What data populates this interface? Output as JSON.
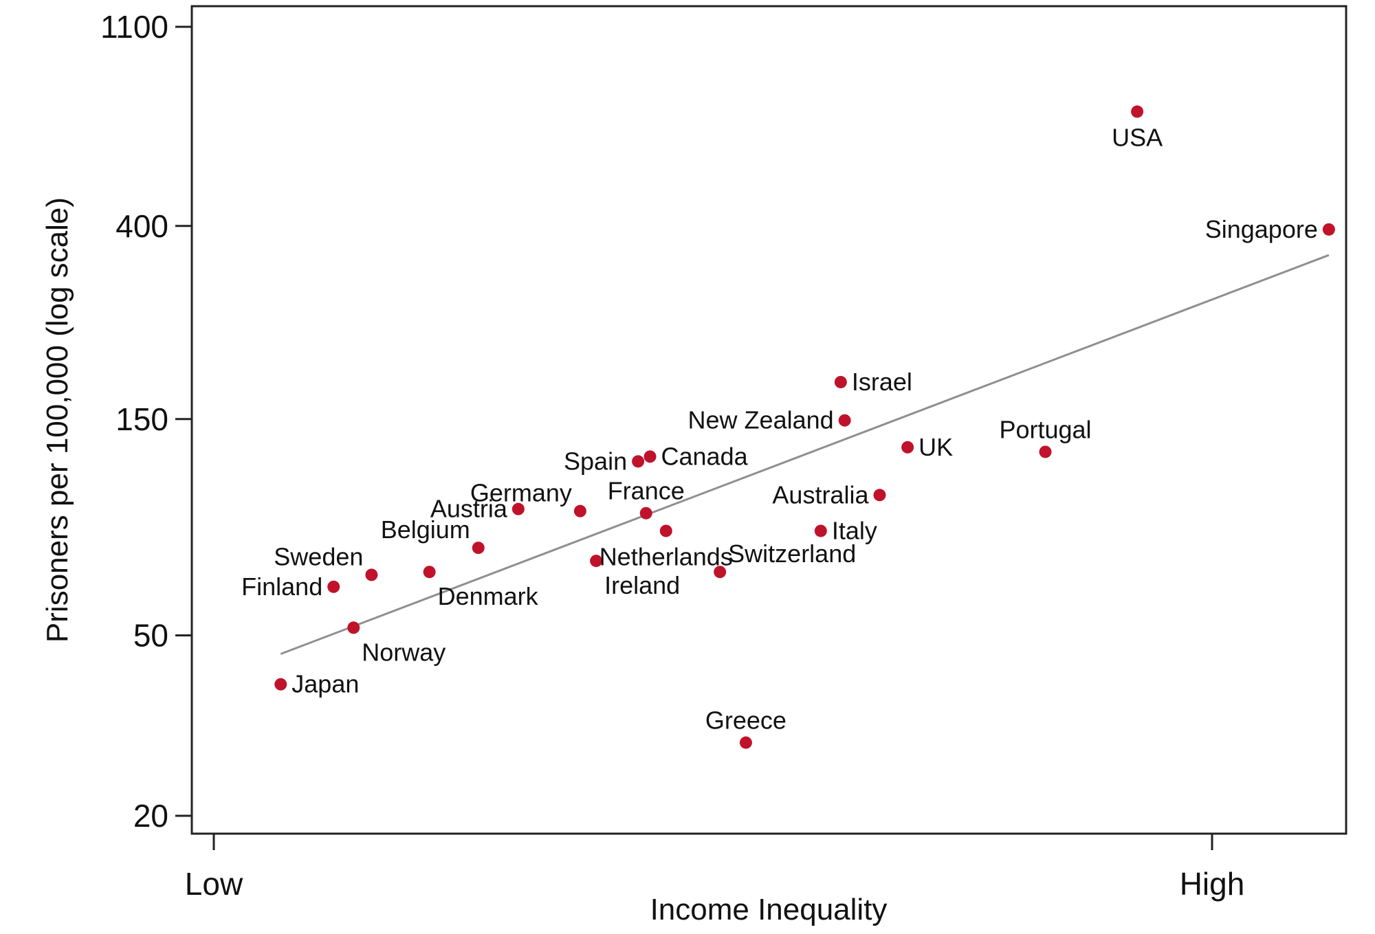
{
  "chart_data": {
    "type": "scatter",
    "xlabel": "Income Inequality",
    "ylabel": "Prisoners per 100,000 (log scale)",
    "y_scale": "log",
    "ylim": [
      18,
      1250
    ],
    "xlim": [
      -0.02,
      1.13
    ],
    "x_ticks": [
      {
        "value": 0,
        "label": "Low"
      },
      {
        "value": 1,
        "label": "High"
      }
    ],
    "y_ticks": [
      {
        "value": 20,
        "label": "20"
      },
      {
        "value": 50,
        "label": "50"
      },
      {
        "value": 150,
        "label": "150"
      },
      {
        "value": 400,
        "label": "400"
      },
      {
        "value": 1100,
        "label": "1100"
      }
    ],
    "grid": false,
    "colors": {
      "points": "#c0122b",
      "trendline": "#8f8f8f"
    },
    "points": [
      {
        "label": "Japan",
        "x": 0.067,
        "y": 39,
        "label_pos": "right"
      },
      {
        "label": "Finland",
        "x": 0.12,
        "y": 64,
        "label_pos": "left"
      },
      {
        "label": "Norway",
        "x": 0.14,
        "y": 52,
        "label_pos": "below-right"
      },
      {
        "label": "Sweden",
        "x": 0.158,
        "y": 68,
        "label_pos": "above-left"
      },
      {
        "label": "Denmark",
        "x": 0.216,
        "y": 69,
        "label_pos": "below-right"
      },
      {
        "label": "Belgium",
        "x": 0.265,
        "y": 78,
        "label_pos": "above-left"
      },
      {
        "label": "Austria",
        "x": 0.305,
        "y": 95,
        "label_pos": "left"
      },
      {
        "label": "Germany",
        "x": 0.367,
        "y": 94,
        "label_pos": "above-left"
      },
      {
        "label": "Ireland",
        "x": 0.383,
        "y": 73,
        "label_pos": "below-right"
      },
      {
        "label": "Spain",
        "x": 0.425,
        "y": 121,
        "label_pos": "left"
      },
      {
        "label": "Canada",
        "x": 0.437,
        "y": 124,
        "label_pos": "right"
      },
      {
        "label": "France",
        "x": 0.433,
        "y": 93,
        "label_pos": "above"
      },
      {
        "label": "Netherlands",
        "x": 0.453,
        "y": 85,
        "label_pos": "below"
      },
      {
        "label": "Switzerland",
        "x": 0.507,
        "y": 69,
        "label_pos": "above-right"
      },
      {
        "label": "Greece",
        "x": 0.533,
        "y": 29,
        "label_pos": "above"
      },
      {
        "label": "Italy",
        "x": 0.608,
        "y": 85,
        "label_pos": "right"
      },
      {
        "label": "Israel",
        "x": 0.628,
        "y": 181,
        "label_pos": "right"
      },
      {
        "label": "New Zealand",
        "x": 0.632,
        "y": 149,
        "label_pos": "left"
      },
      {
        "label": "Australia",
        "x": 0.667,
        "y": 102,
        "label_pos": "left"
      },
      {
        "label": "UK",
        "x": 0.695,
        "y": 130,
        "label_pos": "right"
      },
      {
        "label": "Portugal",
        "x": 0.833,
        "y": 127,
        "label_pos": "above"
      },
      {
        "label": "USA",
        "x": 0.925,
        "y": 715,
        "label_pos": "below"
      },
      {
        "label": "Singapore",
        "x": 1.117,
        "y": 393,
        "label_pos": "left"
      }
    ],
    "trendline": {
      "x": [
        0.067,
        1.117
      ],
      "y": [
        45.5,
        345
      ]
    }
  }
}
